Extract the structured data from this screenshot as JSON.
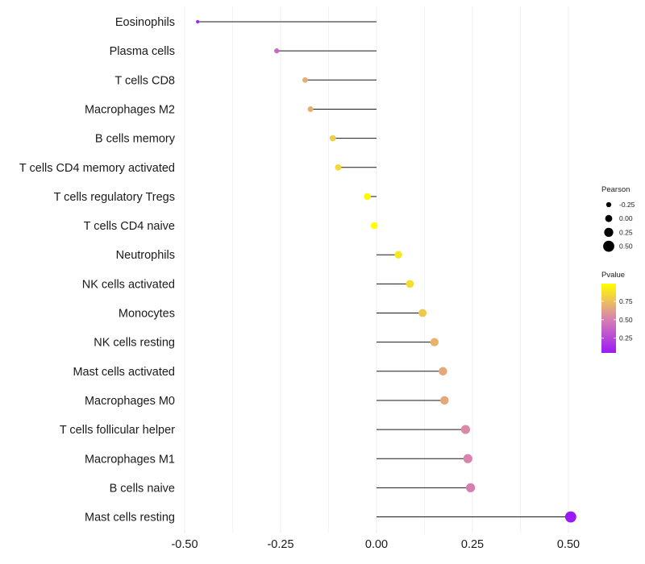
{
  "chart_data": {
    "type": "lollipop",
    "xlim": [
      -0.5,
      0.55
    ],
    "x_ticks": [
      -0.5,
      -0.25,
      0.0,
      0.25,
      0.5
    ],
    "x_tick_labels": [
      "-0.50",
      "-0.25",
      "0.00",
      "0.25",
      "0.50"
    ],
    "grid": true,
    "baseline": 0,
    "categories": [
      "Eosinophils",
      "Plasma cells",
      "T cells CD8",
      "Macrophages M2",
      "B cells memory",
      "T cells CD4 memory activated",
      "T cells regulatory  Tregs",
      "T cells CD4 naive",
      "Neutrophils",
      "NK cells activated",
      "Monocytes",
      "NK cells resting",
      "Mast cells activated",
      "Macrophages M0",
      "T cells follicular helper",
      "Macrophages M1",
      "B cells naive",
      "Mast cells resting"
    ],
    "values": [
      -0.466,
      -0.26,
      -0.186,
      -0.172,
      -0.114,
      -0.1,
      -0.024,
      -0.006,
      0.057,
      0.087,
      0.12,
      0.151,
      0.173,
      0.177,
      0.232,
      0.238,
      0.245,
      0.506
    ],
    "pvalues": [
      0.1,
      0.4,
      0.68,
      0.68,
      0.8,
      0.84,
      0.97,
      0.99,
      0.9,
      0.86,
      0.78,
      0.7,
      0.66,
      0.66,
      0.54,
      0.52,
      0.5,
      0.05
    ],
    "legend_size": {
      "title": "Pearson",
      "values": [
        -0.25,
        0.0,
        0.25,
        0.5
      ],
      "labels": [
        "-0.25",
        "0.00",
        "0.25",
        "0.50"
      ]
    },
    "legend_color": {
      "title": "Pvalue",
      "ticks": [
        0.25,
        0.5,
        0.75
      ],
      "labels": [
        "0.25",
        "0.50",
        "0.75"
      ],
      "range": [
        0.05,
        0.99
      ],
      "low_color": "#9b19f5",
      "mid_color": "#d884ae",
      "high_color": "#ffff00"
    }
  }
}
